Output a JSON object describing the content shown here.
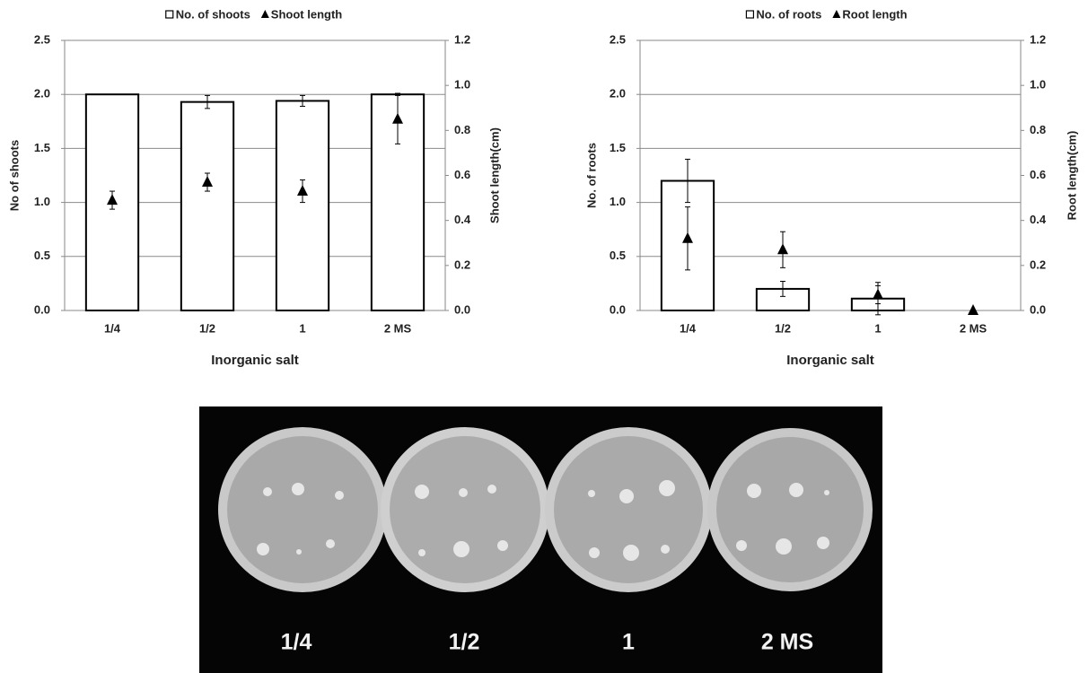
{
  "chart_data": [
    {
      "type": "bar",
      "categories": [
        "1/4",
        "1/2",
        "1",
        "2 MS"
      ],
      "xlabel": "Inorganic salt",
      "ylabel": "No of shoots",
      "y2label": "Shoot length(cm)",
      "ylim": [
        0,
        2.5
      ],
      "yticks": [
        {
          "value": 0,
          "label": "0.0"
        },
        0.5,
        {
          "value": 1,
          "label": "1.0"
        },
        1.5,
        {
          "value": 2,
          "label": "2.0"
        },
        2.5
      ],
      "y2lim": [
        0,
        1.2
      ],
      "y2ticks": [
        {
          "value": 0,
          "label": "0.0"
        },
        0.2,
        0.4,
        0.6,
        0.8,
        {
          "value": 1,
          "label": "1.0"
        },
        1.2
      ],
      "grid": true,
      "legend": "top",
      "series": [
        {
          "name": "No. of shoots",
          "color": "#ffffff",
          "edgecolor": "#000000",
          "values": [
            2.0,
            1.93,
            1.94,
            2.0
          ],
          "errors": [
            0,
            0.06,
            0.05,
            0.01
          ]
        },
        {
          "name": "Shoot length",
          "color": "#000000",
          "marker": "triangle",
          "axis": "y2",
          "values": [
            0.49,
            0.57,
            0.53,
            0.85
          ],
          "errors": [
            0.04,
            0.04,
            0.05,
            0.11
          ]
        }
      ]
    },
    {
      "type": "bar",
      "categories": [
        "1/4",
        "1/2",
        "1",
        "2 MS"
      ],
      "xlabel": "Inorganic salt",
      "ylabel": "No. of roots",
      "y2label": "Root length(cm)",
      "ylim": [
        0,
        2.5
      ],
      "yticks": [
        {
          "value": 0,
          "label": "0.0"
        },
        0.5,
        {
          "value": 1,
          "label": "1.0"
        },
        1.5,
        {
          "value": 2,
          "label": "2.0"
        },
        2.5
      ],
      "y2lim": [
        0,
        1.2
      ],
      "y2ticks": [
        {
          "value": 0,
          "label": "0.0"
        },
        0.2,
        0.4,
        0.6,
        0.8,
        {
          "value": 1,
          "label": "1.0"
        },
        1.2
      ],
      "grid": true,
      "legend": "top",
      "series": [
        {
          "name": "No. of roots",
          "color": "#ffffff",
          "edgecolor": "#000000",
          "values": [
            1.2,
            0.2,
            0.11,
            0
          ],
          "errors": [
            0.2,
            0.07,
            0.15,
            0
          ]
        },
        {
          "name": "Root length",
          "color": "#000000",
          "marker": "triangle",
          "axis": "y2",
          "values": [
            0.32,
            0.27,
            0.07,
            0
          ],
          "errors": [
            0.14,
            0.08,
            0.04,
            0
          ]
        }
      ]
    }
  ],
  "photo": {
    "labels": [
      "1/4",
      "1/2",
      "1",
      "2 MS"
    ]
  }
}
